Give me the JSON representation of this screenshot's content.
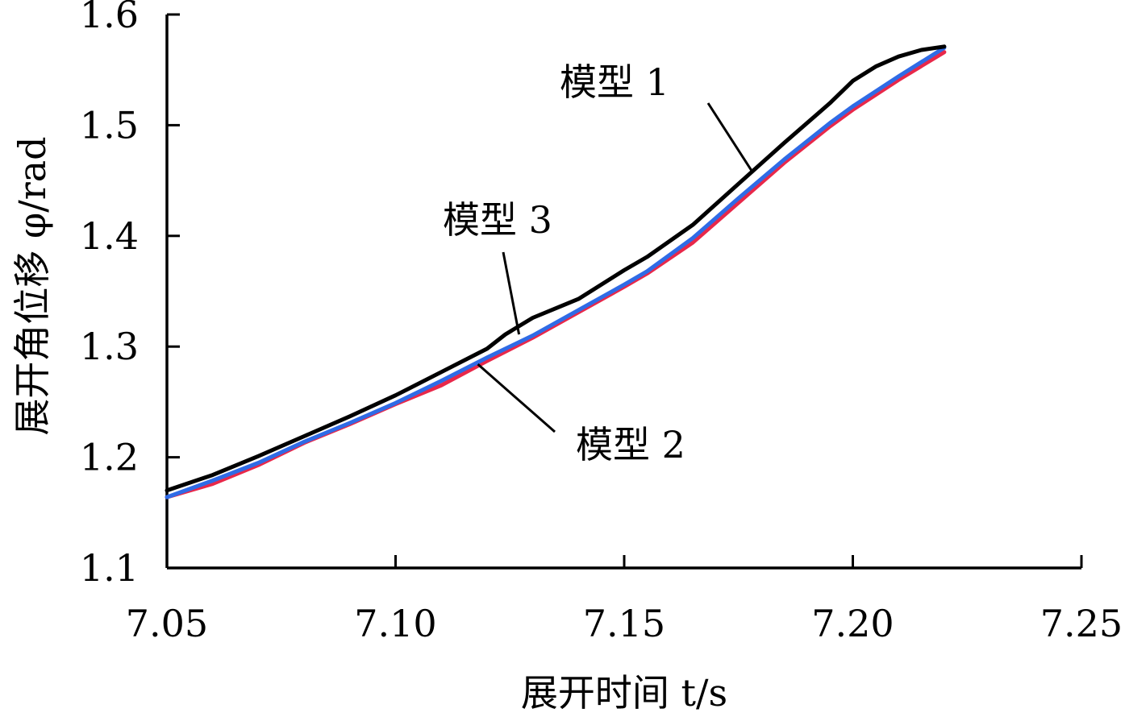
{
  "chart_data": {
    "type": "line",
    "xlabel": "展开时间 t/s",
    "ylabel": "展开角位移 φ/rad",
    "xlim": [
      7.05,
      7.25
    ],
    "ylim": [
      1.1,
      1.6
    ],
    "x_ticks": [
      "7.05",
      "7.10",
      "7.15",
      "7.20",
      "7.25"
    ],
    "y_ticks": [
      "1.1",
      "1.2",
      "1.3",
      "1.4",
      "1.5",
      "1.6"
    ],
    "grid": false,
    "series": [
      {
        "name": "模型 1",
        "color": "#000000",
        "x": [
          7.05,
          7.06,
          7.07,
          7.08,
          7.09,
          7.1,
          7.11,
          7.12,
          7.124,
          7.13,
          7.14,
          7.15,
          7.155,
          7.165,
          7.175,
          7.185,
          7.195,
          7.2,
          7.205,
          7.21,
          7.215,
          7.22
        ],
        "y": [
          1.17,
          1.184,
          1.201,
          1.219,
          1.237,
          1.256,
          1.277,
          1.298,
          1.311,
          1.326,
          1.343,
          1.369,
          1.381,
          1.41,
          1.447,
          1.484,
          1.52,
          1.54,
          1.553,
          1.562,
          1.568,
          1.571
        ]
      },
      {
        "name": "模型 2",
        "color": "#e8284a",
        "x": [
          7.05,
          7.06,
          7.07,
          7.08,
          7.09,
          7.1,
          7.11,
          7.12,
          7.13,
          7.14,
          7.15,
          7.155,
          7.165,
          7.175,
          7.185,
          7.195,
          7.2,
          7.21,
          7.22
        ],
        "y": [
          1.164,
          1.176,
          1.193,
          1.213,
          1.23,
          1.248,
          1.265,
          1.287,
          1.308,
          1.331,
          1.354,
          1.366,
          1.394,
          1.43,
          1.466,
          1.499,
          1.514,
          1.541,
          1.566
        ]
      },
      {
        "name": "模型 3",
        "color": "#2f6be6",
        "x": [
          7.05,
          7.06,
          7.07,
          7.08,
          7.09,
          7.1,
          7.11,
          7.12,
          7.13,
          7.14,
          7.15,
          7.155,
          7.165,
          7.175,
          7.185,
          7.195,
          7.2,
          7.21,
          7.22
        ],
        "y": [
          1.164,
          1.179,
          1.195,
          1.214,
          1.231,
          1.249,
          1.269,
          1.29,
          1.31,
          1.333,
          1.356,
          1.368,
          1.398,
          1.434,
          1.469,
          1.502,
          1.517,
          1.544,
          1.57
        ]
      }
    ],
    "annotations": [
      {
        "text": "模型 1",
        "series": "模型 1",
        "point": [
          7.178,
          1.458
        ]
      },
      {
        "text": "模型 3",
        "series": "模型 3",
        "point": [
          7.127,
          1.311
        ]
      },
      {
        "text": "模型 2",
        "series": "模型 2",
        "point": [
          7.118,
          1.284
        ]
      }
    ]
  }
}
